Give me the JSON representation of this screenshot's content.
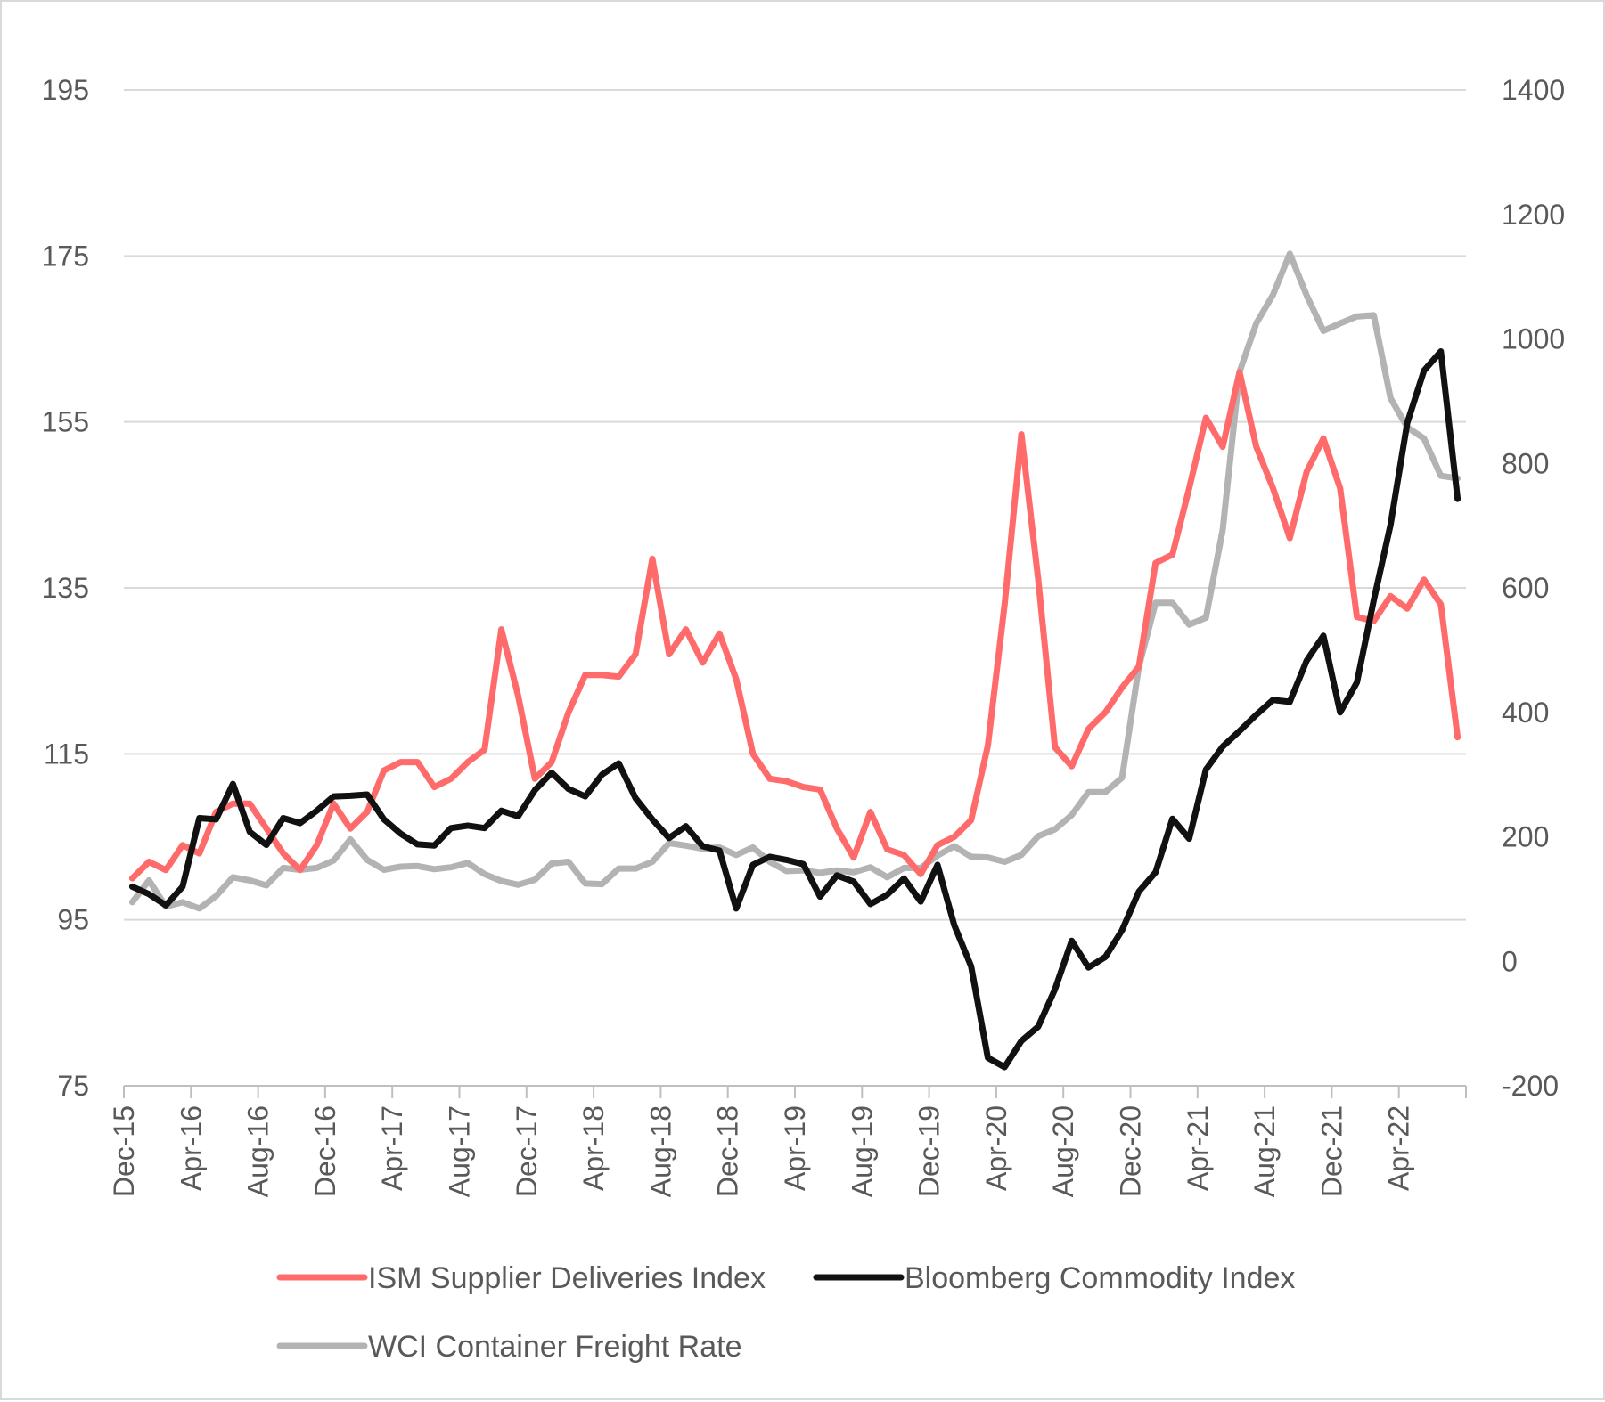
{
  "chart_data": {
    "type": "line",
    "title": "",
    "xlabel": "",
    "ylabel": "",
    "y2label": "",
    "ylim": [
      75,
      195
    ],
    "y_ticks": [
      75,
      95,
      115,
      135,
      155,
      175,
      195
    ],
    "y2lim": [
      -200,
      1400
    ],
    "y2_ticks": [
      -200,
      0,
      200,
      400,
      600,
      800,
      1000,
      1200,
      1400
    ],
    "x_tick_labels": [
      "Dec-15",
      "Apr-16",
      "Aug-16",
      "Dec-16",
      "Apr-17",
      "Aug-17",
      "Dec-17",
      "Apr-18",
      "Aug-18",
      "Dec-18",
      "Apr-19",
      "Aug-19",
      "Dec-19",
      "Apr-20",
      "Aug-20",
      "Dec-20",
      "Apr-21",
      "Aug-21",
      "Dec-21",
      "Apr-22"
    ],
    "x_tick_every": 4,
    "x": [
      "Dec-15",
      "Jan-16",
      "Feb-16",
      "Mar-16",
      "Apr-16",
      "May-16",
      "Jun-16",
      "Jul-16",
      "Aug-16",
      "Sep-16",
      "Oct-16",
      "Nov-16",
      "Dec-16",
      "Jan-17",
      "Feb-17",
      "Mar-17",
      "Apr-17",
      "May-17",
      "Jun-17",
      "Jul-17",
      "Aug-17",
      "Sep-17",
      "Oct-17",
      "Nov-17",
      "Dec-17",
      "Jan-18",
      "Feb-18",
      "Mar-18",
      "Apr-18",
      "May-18",
      "Jun-18",
      "Jul-18",
      "Aug-18",
      "Sep-18",
      "Oct-18",
      "Nov-18",
      "Dec-18",
      "Jan-19",
      "Feb-19",
      "Mar-19",
      "Apr-19",
      "May-19",
      "Jun-19",
      "Jul-19",
      "Aug-19",
      "Sep-19",
      "Oct-19",
      "Nov-19",
      "Dec-19",
      "Jan-20",
      "Feb-20",
      "Mar-20",
      "Apr-20",
      "May-20",
      "Jun-20",
      "Jul-20",
      "Aug-20",
      "Sep-20",
      "Oct-20",
      "Nov-20",
      "Dec-20",
      "Jan-21",
      "Feb-21",
      "Mar-21",
      "Apr-21",
      "May-21",
      "Jun-21",
      "Jul-21",
      "Aug-21",
      "Sep-21",
      "Oct-21",
      "Nov-21",
      "Dec-21",
      "Jan-22",
      "Feb-22",
      "Mar-22",
      "Apr-22",
      "May-22",
      "Jun-22",
      "Jul-22"
    ],
    "legend_position": "bottom",
    "grid": true,
    "series": [
      {
        "name": "ISM Supplier Deliveries Index",
        "axis": "left",
        "color": "#ff6b6b",
        "values": [
          100,
          102,
          101,
          104,
          103,
          108,
          109,
          109,
          106,
          103,
          101,
          104,
          109,
          106,
          108,
          113,
          114,
          114,
          111,
          112,
          114,
          115.5,
          130,
          122,
          112,
          114,
          120,
          124.5,
          124.5,
          124.3,
          127,
          138.5,
          127,
          130,
          126,
          129.5,
          124,
          115,
          112,
          111.7,
          111,
          110.7,
          106,
          102.5,
          108,
          103.5,
          102.8,
          100.5,
          104,
          105,
          107,
          116,
          133,
          153.5,
          136,
          115.8,
          113.5,
          118,
          120,
          123,
          125.5,
          138,
          139,
          147,
          155.5,
          152,
          161,
          152,
          147,
          141,
          149,
          153,
          147,
          131.5,
          131,
          134,
          132.5,
          136,
          133,
          117
        ]
      },
      {
        "name": "Bloomberg Commodity Index",
        "axis": "right",
        "color": "#111111",
        "values": [
          120,
          108,
          90,
          120,
          230,
          228,
          285,
          208,
          187,
          230,
          222,
          242,
          265,
          266,
          268,
          228,
          205,
          188,
          186,
          214,
          218,
          214,
          242,
          233,
          275,
          303,
          277,
          265,
          300,
          318,
          262,
          228,
          198,
          217,
          185,
          178,
          85,
          155,
          168,
          163,
          156,
          104,
          138,
          128,
          92,
          107,
          133,
          96,
          155,
          58,
          -8,
          -155,
          -170,
          -128,
          -105,
          -45,
          33,
          -10,
          7,
          50,
          112,
          143,
          229,
          197,
          308,
          345,
          370,
          396,
          420,
          417,
          483,
          523,
          400,
          448,
          580,
          701,
          865,
          949,
          980,
          743
        ]
      },
      {
        "name": "WCI Container Freight Rate",
        "axis": "right",
        "color": "#b3b3b3",
        "values": [
          95,
          130,
          88,
          95,
          85,
          105,
          135,
          130,
          122,
          150,
          147,
          150,
          162,
          196,
          163,
          147,
          152,
          153,
          148,
          151,
          158,
          140,
          129,
          123,
          131,
          157,
          160,
          125,
          124,
          149,
          149,
          160,
          190,
          186,
          181,
          183,
          171,
          183,
          160,
          145,
          146,
          142,
          146,
          143,
          151,
          135,
          150,
          150,
          170,
          185,
          168,
          167,
          160,
          171,
          201,
          212,
          235,
          272,
          272,
          295,
          473,
          576,
          576,
          541,
          552,
          693,
          947,
          1025,
          1071,
          1137,
          1070,
          1013,
          1025,
          1036,
          1038,
          905,
          858,
          840,
          780,
          776
        ]
      }
    ]
  }
}
